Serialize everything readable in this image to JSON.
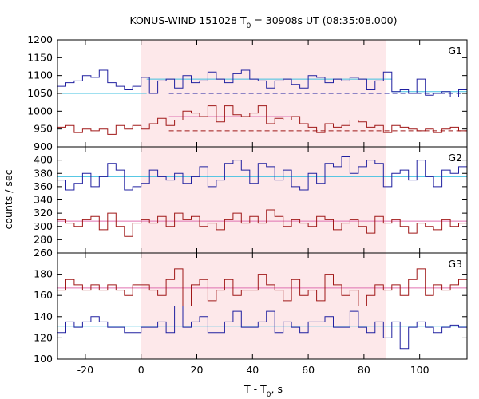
{
  "chart_data": {
    "type": "line",
    "title_main": "KONUS-WIND 151028 T",
    "title_sub": "0",
    "title_rest": " = 30908s UT (08:35:08.000)",
    "xlabel_main": "T - T",
    "xlabel_sub": "0",
    "xlabel_rest": ", s",
    "ylabel": "counts / sec",
    "xlim": [
      -30,
      117
    ],
    "xticks": [
      -20,
      0,
      20,
      40,
      60,
      80,
      100
    ],
    "shaded_interval": [
      0,
      88
    ],
    "colors": {
      "blue": "#2020a0",
      "red": "#a01818",
      "cyan": "#40c0e0",
      "pink": "#e070b0",
      "shade": "#fde8ea"
    },
    "bin_x": [
      -30,
      -27,
      -24,
      -21,
      -18,
      -15,
      -12,
      -9,
      -6,
      -3,
      0,
      3,
      6,
      9,
      12,
      15,
      18,
      21,
      24,
      27,
      30,
      33,
      36,
      39,
      42,
      45,
      48,
      51,
      54,
      57,
      60,
      63,
      66,
      69,
      72,
      75,
      78,
      81,
      84,
      87,
      90,
      93,
      96,
      99,
      102,
      105,
      108,
      111,
      114
    ],
    "panels": [
      {
        "label": "G1",
        "ylim": [
          900,
          1200
        ],
        "yticks": [
          900,
          950,
          1000,
          1050,
          1100,
          1150,
          1200
        ],
        "series": [
          {
            "color": "blue",
            "values": [
              1070,
              1080,
              1085,
              1100,
              1095,
              1115,
              1080,
              1070,
              1060,
              1070,
              1095,
              1050,
              1085,
              1090,
              1065,
              1100,
              1080,
              1085,
              1110,
              1090,
              1080,
              1105,
              1115,
              1090,
              1085,
              1065,
              1085,
              1090,
              1075,
              1065,
              1100,
              1095,
              1080,
              1090,
              1085,
              1095,
              1090,
              1060,
              1085,
              1110,
              1055,
              1060,
              1050,
              1090,
              1045,
              1050,
              1055,
              1040,
              1060
            ]
          },
          {
            "color": "red",
            "values": [
              955,
              960,
              940,
              950,
              945,
              950,
              935,
              960,
              950,
              960,
              950,
              965,
              980,
              960,
              975,
              1000,
              995,
              985,
              1015,
              970,
              1015,
              990,
              985,
              995,
              1015,
              965,
              980,
              975,
              985,
              965,
              955,
              940,
              965,
              955,
              960,
              975,
              970,
              955,
              960,
              940,
              960,
              955,
              950,
              945,
              950,
              940,
              950,
              955,
              945
            ]
          }
        ],
        "ref_lines": [
          {
            "color": "cyan",
            "y": 1050,
            "x": [
              -30,
              2
            ]
          },
          {
            "color": "cyan",
            "y": 1090,
            "x": [
              2,
              90
            ]
          },
          {
            "color": "cyan",
            "y": 1055,
            "x": [
              90,
              117
            ]
          },
          {
            "color": "blue",
            "y": 1050,
            "x": [
              10,
              117
            ],
            "dashed": true
          },
          {
            "color": "red",
            "y": 945,
            "x": [
              10,
              117
            ],
            "dashed": true
          },
          {
            "color": "pink",
            "y": 985,
            "x": [
              10,
              55
            ]
          }
        ]
      },
      {
        "label": "G2",
        "ylim": [
          260,
          420
        ],
        "yticks": [
          260,
          280,
          300,
          320,
          340,
          360,
          380,
          400
        ],
        "series": [
          {
            "color": "blue",
            "values": [
              370,
              355,
              365,
              380,
              360,
              375,
              395,
              385,
              355,
              360,
              365,
              385,
              375,
              370,
              380,
              365,
              375,
              390,
              360,
              370,
              395,
              400,
              385,
              365,
              395,
              390,
              370,
              385,
              360,
              355,
              380,
              365,
              395,
              390,
              405,
              380,
              390,
              400,
              395,
              360,
              380,
              385,
              370,
              400,
              375,
              360,
              385,
              380,
              390
            ]
          },
          {
            "color": "red",
            "values": [
              310,
              305,
              300,
              310,
              315,
              295,
              320,
              300,
              285,
              305,
              310,
              305,
              315,
              300,
              320,
              310,
              315,
              300,
              305,
              295,
              310,
              320,
              305,
              315,
              305,
              325,
              315,
              300,
              310,
              305,
              300,
              315,
              310,
              295,
              305,
              310,
              300,
              290,
              315,
              305,
              310,
              300,
              290,
              305,
              300,
              295,
              310,
              300,
              305
            ]
          }
        ],
        "ref_lines": [
          {
            "color": "cyan",
            "y": 375,
            "x": [
              -30,
              117
            ]
          },
          {
            "color": "pink",
            "y": 308,
            "x": [
              -30,
              117
            ]
          }
        ]
      },
      {
        "label": "G3",
        "ylim": [
          100,
          200
        ],
        "yticks": [
          100,
          120,
          140,
          160,
          180
        ],
        "series": [
          {
            "color": "blue",
            "values": [
              125,
              135,
              130,
              135,
              140,
              135,
              130,
              130,
              125,
              125,
              130,
              130,
              135,
              125,
              150,
              130,
              135,
              140,
              125,
              125,
              135,
              145,
              130,
              130,
              135,
              145,
              125,
              135,
              130,
              125,
              135,
              135,
              140,
              130,
              130,
              145,
              130,
              125,
              135,
              120,
              135,
              110,
              130,
              135,
              130,
              125,
              130,
              132,
              130
            ]
          },
          {
            "color": "red",
            "values": [
              165,
              175,
              170,
              165,
              170,
              165,
              170,
              165,
              160,
              170,
              170,
              165,
              160,
              175,
              185,
              150,
              170,
              175,
              155,
              165,
              175,
              160,
              165,
              165,
              180,
              170,
              165,
              155,
              175,
              160,
              165,
              155,
              180,
              170,
              160,
              165,
              150,
              160,
              170,
              165,
              170,
              160,
              175,
              185,
              160,
              170,
              165,
              170,
              175
            ]
          }
        ],
        "ref_lines": [
          {
            "color": "cyan",
            "y": 131,
            "x": [
              -30,
              117
            ]
          },
          {
            "color": "pink",
            "y": 167,
            "x": [
              -30,
              117
            ]
          }
        ]
      }
    ]
  }
}
